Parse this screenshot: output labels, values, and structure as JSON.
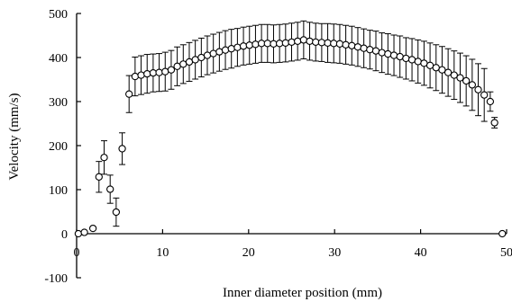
{
  "chart_data": {
    "type": "scatter",
    "title": "",
    "xlabel": "Inner diameter position (mm)",
    "ylabel": "Velocity (mm/s)",
    "xlim": [
      0,
      50
    ],
    "ylim": [
      -100,
      500
    ],
    "xticks": [
      0,
      10,
      20,
      30,
      40,
      50
    ],
    "yticks": [
      -100,
      0,
      100,
      200,
      300,
      400,
      500
    ],
    "xtick_labels": [
      "0",
      "10",
      "20",
      "30",
      "40",
      "50"
    ],
    "ytick_labels": [
      "-100",
      "0",
      "100",
      "200",
      "300",
      "400",
      "500"
    ],
    "grid": false,
    "legend": "none",
    "marker": "open-circle",
    "colors": {
      "axis": "#000000",
      "marker_fill": "#ffffff",
      "marker_edge": "#000000"
    },
    "series": [
      {
        "x": [
          0.2,
          0.9,
          1.9,
          2.6,
          3.2,
          3.9,
          4.6,
          5.3,
          6.1,
          6.8,
          7.5,
          8.2,
          8.9,
          9.6,
          10.3,
          11.0,
          11.7,
          12.4,
          13.1,
          13.8,
          14.5,
          15.2,
          15.9,
          16.6,
          17.3,
          18.0,
          18.7,
          19.4,
          20.1,
          20.8,
          21.5,
          22.2,
          22.9,
          23.6,
          24.3,
          25.0,
          25.7,
          26.4,
          27.1,
          27.8,
          28.5,
          29.2,
          29.9,
          30.6,
          31.3,
          32.0,
          32.7,
          33.4,
          34.1,
          34.8,
          35.5,
          36.2,
          36.9,
          37.6,
          38.3,
          39.0,
          39.7,
          40.4,
          41.1,
          41.8,
          42.5,
          43.2,
          43.9,
          44.6,
          45.3,
          46.0,
          46.7,
          47.4,
          48.1,
          48.6,
          49.5
        ],
        "y": [
          0,
          3,
          12,
          129,
          173,
          101,
          49,
          193,
          317,
          357,
          360,
          363,
          365,
          366,
          368,
          372,
          380,
          385,
          390,
          395,
          400,
          405,
          409,
          413,
          417,
          420,
          423,
          426,
          428,
          430,
          432,
          432,
          431,
          432,
          433,
          435,
          437,
          440,
          437,
          435,
          434,
          433,
          432,
          431,
          429,
          427,
          424,
          421,
          418,
          415,
          411,
          408,
          405,
          402,
          398,
          395,
          391,
          387,
          382,
          377,
          372,
          366,
          360,
          354,
          347,
          338,
          327,
          315,
          300,
          252,
          0
        ],
        "err": [
          0,
          0,
          0,
          35,
          38,
          32,
          32,
          36,
          42,
          44,
          44,
          44,
          43,
          43,
          44,
          44,
          44,
          44,
          44,
          44,
          44,
          44,
          44,
          44,
          44,
          44,
          43,
          43,
          43,
          43,
          43,
          43,
          43,
          43,
          43,
          43,
          43,
          43,
          43,
          43,
          43,
          44,
          44,
          44,
          44,
          44,
          44,
          44,
          44,
          45,
          45,
          46,
          46,
          47,
          47,
          48,
          49,
          50,
          51,
          52,
          53,
          54,
          55,
          56,
          57,
          58,
          59,
          60,
          22,
          12,
          0
        ]
      }
    ]
  }
}
